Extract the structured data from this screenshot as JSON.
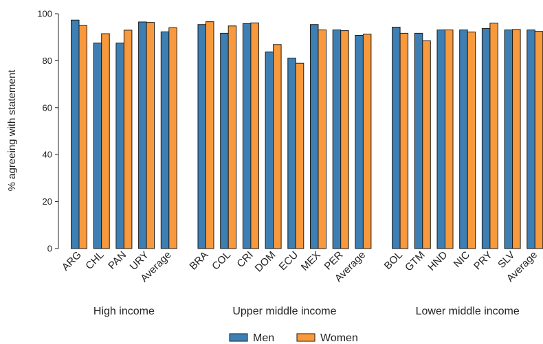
{
  "chart_data": {
    "type": "bar",
    "ylabel": "% agreeing with statement",
    "ylim": [
      0,
      100
    ],
    "yticks": [
      0,
      20,
      40,
      60,
      80,
      100
    ],
    "grid": false,
    "legend_position": "bottom",
    "colors": {
      "Men": "#3e7fb3",
      "Women": "#f8993d",
      "outline": "#1a1a1a"
    },
    "series": [
      {
        "name": "Men"
      },
      {
        "name": "Women"
      }
    ],
    "groups": [
      {
        "label": "High income",
        "categories": [
          "ARG",
          "CHL",
          "PAN",
          "URY",
          "Average"
        ],
        "values": {
          "Men": [
            97.3,
            87.5,
            87.5,
            96.5,
            92.3
          ],
          "Women": [
            95.0,
            91.5,
            93.0,
            96.3,
            94.0
          ]
        }
      },
      {
        "label": "Upper middle income",
        "categories": [
          "BRA",
          "COL",
          "CRI",
          "DOM",
          "ECU",
          "MEX",
          "PER",
          "Average"
        ],
        "values": {
          "Men": [
            95.4,
            91.7,
            95.8,
            83.7,
            81.1,
            95.4,
            93.1,
            90.8
          ],
          "Women": [
            96.6,
            94.8,
            96.1,
            86.9,
            78.9,
            93.1,
            92.8,
            91.3
          ]
        }
      },
      {
        "label": "Lower middle income",
        "categories": [
          "BOL",
          "GTM",
          "HND",
          "NIC",
          "PRY",
          "SLV",
          "Average"
        ],
        "values": {
          "Men": [
            94.3,
            91.7,
            93.1,
            93.1,
            93.7,
            93.1,
            93.1
          ],
          "Women": [
            91.7,
            88.5,
            93.1,
            92.2,
            96.0,
            93.3,
            92.5
          ]
        }
      }
    ]
  }
}
